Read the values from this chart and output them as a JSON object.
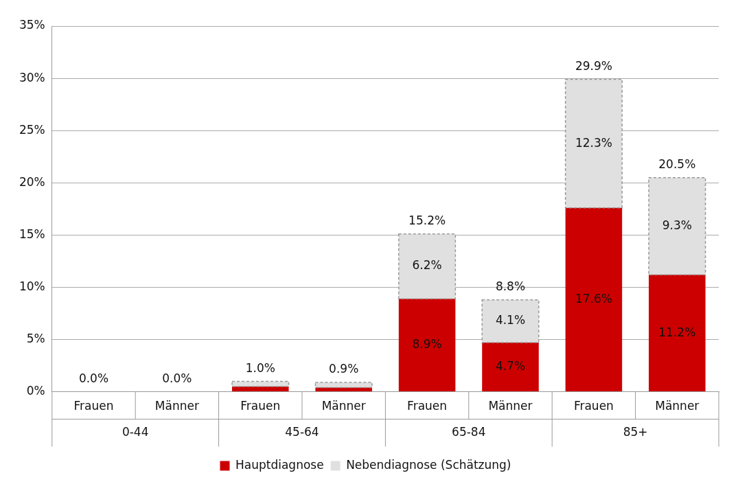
{
  "chart_data": {
    "type": "bar",
    "stacked": true,
    "categories": [
      "Frauen",
      "Männer",
      "Frauen",
      "Männer",
      "Frauen",
      "Männer",
      "Frauen",
      "Männer"
    ],
    "annotations": [
      "0-44",
      "45-64",
      "65-84",
      "85+"
    ],
    "series": [
      {
        "name": "Hauptdiagnose",
        "color": "#cc0000",
        "values": [
          0,
          0,
          0.5,
          0.4,
          8.9,
          4.7,
          17.6,
          11.2
        ],
        "value_labels": [
          null,
          null,
          null,
          null,
          "8.9%",
          "4.7%",
          "17.6%",
          "11.2%"
        ]
      },
      {
        "name": "Nebendiagnose (Schätzung)",
        "color": "#e0e0e0",
        "line_style": "dashed",
        "values": [
          0,
          0,
          0.5,
          0.5,
          6.2,
          4.1,
          12.3,
          9.3
        ],
        "value_labels": [
          null,
          null,
          null,
          null,
          "6.2%",
          "4.1%",
          "12.3%",
          "9.3%"
        ]
      }
    ],
    "totals": [
      "0.0%",
      "0.0%",
      "1.0%",
      "0.9%",
      "15.2%",
      "8.8%",
      "29.9%",
      "20.5%"
    ],
    "ylim": [
      0,
      35
    ],
    "yticks": [
      {
        "value": 0,
        "label": "0%"
      },
      {
        "value": 5,
        "label": "5%"
      },
      {
        "value": 10,
        "label": "10%"
      },
      {
        "value": 15,
        "label": "15%"
      },
      {
        "value": 20,
        "label": "20%"
      },
      {
        "value": 25,
        "label": "25%"
      },
      {
        "value": 30,
        "label": "30%"
      },
      {
        "value": 35,
        "label": "35%"
      }
    ],
    "grid": "y",
    "legend": "bottom"
  }
}
